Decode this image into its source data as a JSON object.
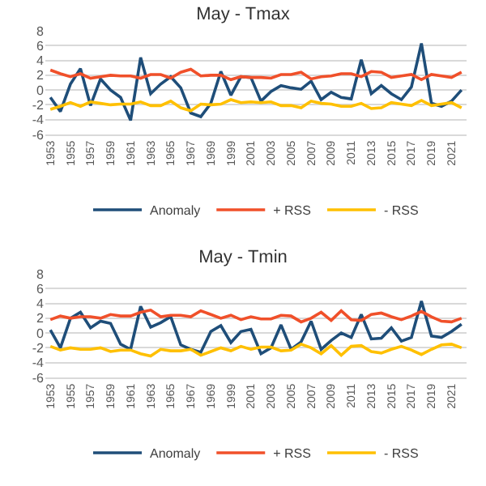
{
  "chart_data": [
    {
      "type": "line",
      "title": "May - Tmax",
      "categories": [
        "1953",
        null,
        "1955",
        null,
        "1957",
        null,
        "1959",
        null,
        "1961",
        null,
        "1963",
        null,
        "1965",
        null,
        "1967",
        null,
        "1969",
        null,
        "1999",
        null,
        "2001",
        null,
        "2003",
        null,
        "2005",
        null,
        "2007",
        null,
        "2009",
        null,
        "2011",
        null,
        "2013",
        null,
        "2015",
        null,
        "2017",
        null,
        "2019",
        null,
        "2021",
        null
      ],
      "series": [
        {
          "name": "Anomaly",
          "color": "#1f4e79",
          "values": [
            -1,
            -2.9,
            0.8,
            2.9,
            -2.1,
            1.5,
            0,
            -1,
            -4.1,
            4.4,
            -0.5,
            0.8,
            1.8,
            0.3,
            -3.1,
            -3.6,
            -1.8,
            2.5,
            -0.7,
            1.8,
            1.7,
            -1.5,
            -0.2,
            0.6,
            0.3,
            0.1,
            1.2,
            -1.3,
            -0.3,
            -1,
            -1.2,
            4.1,
            -0.5,
            0.6,
            -0.5,
            -1.3,
            0.4,
            6.3,
            -1.8,
            -2.2,
            -1.5,
            0
          ]
        },
        {
          "name": "+ RSS",
          "color": "#f0502a",
          "values": [
            2.7,
            2.2,
            1.8,
            2.2,
            1.6,
            1.8,
            2,
            1.9,
            1.9,
            1.6,
            2.1,
            2.1,
            1.6,
            2.4,
            2.8,
            1.9,
            2,
            2,
            1.4,
            1.8,
            1.7,
            1.7,
            1.6,
            2.1,
            2.1,
            2.4,
            1.5,
            1.8,
            1.9,
            2.2,
            2.2,
            1.8,
            2.5,
            2.4,
            1.7,
            1.9,
            2.1,
            1.4,
            2.1,
            1.9,
            1.7,
            2.4
          ]
        },
        {
          "name": "- RSS",
          "color": "#ffc000",
          "values": [
            -2.6,
            -2.2,
            -1.7,
            -2.2,
            -1.6,
            -1.8,
            -2,
            -1.9,
            -1.9,
            -1.6,
            -2.1,
            -2.1,
            -1.5,
            -2.4,
            -2.8,
            -1.9,
            -2,
            -1.9,
            -1.3,
            -1.7,
            -1.6,
            -1.7,
            -1.6,
            -2.1,
            -2.1,
            -2.4,
            -1.5,
            -1.8,
            -1.9,
            -2.2,
            -2.2,
            -1.8,
            -2.5,
            -2.4,
            -1.7,
            -1.9,
            -2.1,
            -1.4,
            -2.1,
            -1.9,
            -1.7,
            -2.4
          ]
        }
      ],
      "ylim": [
        -6,
        8
      ],
      "yticks": [
        -6,
        -4,
        -2,
        0,
        2,
        4,
        6,
        8
      ],
      "grid": "y",
      "legend": "bottom"
    },
    {
      "type": "line",
      "title": "May - Tmin",
      "categories": [
        "1953",
        null,
        "1955",
        null,
        "1957",
        null,
        "1959",
        null,
        "1961",
        null,
        "1963",
        null,
        "1965",
        null,
        "1967",
        null,
        "1969",
        null,
        "1999",
        null,
        "2001",
        null,
        "2003",
        null,
        "2005",
        null,
        "2007",
        null,
        "2009",
        null,
        "2011",
        null,
        "2013",
        null,
        "2015",
        null,
        "2017",
        null,
        "2019",
        null,
        "2021",
        null
      ],
      "series": [
        {
          "name": "Anomaly",
          "color": "#1f4e79",
          "values": [
            0.4,
            -2,
            2,
            2.8,
            0.7,
            1.6,
            1.3,
            -1.5,
            -2.2,
            3.6,
            0.8,
            1.4,
            2.2,
            -1.6,
            -2.2,
            -2.6,
            0.2,
            1,
            -1.3,
            0.2,
            0.5,
            -2.8,
            -2,
            1.1,
            -2.2,
            -1.2,
            1.6,
            -2.2,
            -1,
            0,
            -0.6,
            2.5,
            -0.8,
            -0.7,
            0.7,
            -1.1,
            -0.6,
            4.3,
            -0.4,
            -0.6,
            0.2,
            1.2
          ]
        },
        {
          "name": "+ RSS",
          "color": "#f0502a",
          "values": [
            1.8,
            2.3,
            2,
            2.2,
            2.2,
            2,
            2.5,
            2.3,
            2.3,
            2.8,
            3.1,
            2.2,
            2.4,
            2.4,
            2.2,
            3,
            2.5,
            2,
            2.4,
            1.8,
            2.2,
            1.9,
            1.9,
            2.4,
            2.3,
            1.5,
            2,
            2.8,
            1.7,
            3,
            1.8,
            1.7,
            2.5,
            2.7,
            2.2,
            1.8,
            2.3,
            2.9,
            2.2,
            1.6,
            1.5,
            2
          ]
        },
        {
          "name": "- RSS",
          "color": "#ffc000",
          "values": [
            -1.8,
            -2.3,
            -2,
            -2.2,
            -2.2,
            -2,
            -2.5,
            -2.3,
            -2.3,
            -2.8,
            -3.1,
            -2.2,
            -2.4,
            -2.4,
            -2.2,
            -3,
            -2.5,
            -2,
            -2.4,
            -1.8,
            -2.2,
            -1.9,
            -1.9,
            -2.4,
            -2.3,
            -1.5,
            -2,
            -2.8,
            -1.7,
            -3,
            -1.8,
            -1.7,
            -2.5,
            -2.7,
            -2.2,
            -1.8,
            -2.3,
            -2.9,
            -2.2,
            -1.6,
            -1.5,
            -2
          ]
        }
      ],
      "ylim": [
        -6,
        8
      ],
      "yticks": [
        -6,
        -4,
        -2,
        0,
        2,
        4,
        6,
        8
      ],
      "grid": "y",
      "legend": "bottom"
    }
  ]
}
